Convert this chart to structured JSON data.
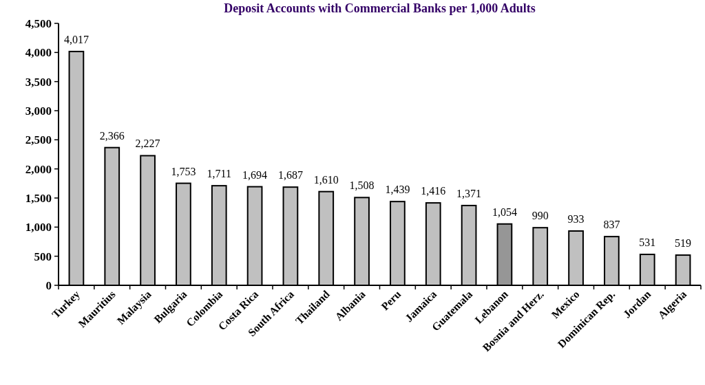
{
  "chart_data": {
    "type": "bar",
    "title": "Deposit Accounts with Commercial Banks per 1,000 Adults",
    "categories": [
      "Turkey",
      "Mauritius",
      "Malaysia",
      "Bulgaria",
      "Colombia",
      "Costa Rica",
      "South Africa",
      "Thailand",
      "Albania",
      "Peru",
      "Jamaica",
      "Guatemala",
      "Lebanon",
      "Bosnia and Herz.",
      "Mexico",
      "Dominican Rep.",
      "Jordan",
      "Algeria"
    ],
    "values": [
      4017,
      2366,
      2227,
      1753,
      1711,
      1694,
      1687,
      1610,
      1508,
      1439,
      1416,
      1371,
      1054,
      990,
      933,
      837,
      531,
      519
    ],
    "colors": [
      "#c0c0c0",
      "#c0c0c0",
      "#c0c0c0",
      "#c0c0c0",
      "#c0c0c0",
      "#c0c0c0",
      "#c0c0c0",
      "#c0c0c0",
      "#c0c0c0",
      "#c0c0c0",
      "#c0c0c0",
      "#c0c0c0",
      "#969696",
      "#c0c0c0",
      "#c0c0c0",
      "#c0c0c0",
      "#c0c0c0",
      "#c0c0c0"
    ],
    "ylim": [
      0,
      4500
    ],
    "yticks": [
      {
        "value": 0,
        "label": "0"
      },
      {
        "value": 500,
        "label": "500"
      },
      {
        "value": 1000,
        "label": "1,000"
      },
      {
        "value": 1500,
        "label": "1,500"
      },
      {
        "value": 2000,
        "label": "2,000"
      },
      {
        "value": 2500,
        "label": "2,500"
      },
      {
        "value": 3000,
        "label": "3,000"
      },
      {
        "value": 3500,
        "label": "3,500"
      },
      {
        "value": 4000,
        "label": "4,000"
      },
      {
        "value": 4500,
        "label": "4,500"
      }
    ],
    "value_labels": [
      "4,017",
      "2,366",
      "2,227",
      "1,753",
      "1,711",
      "1,694",
      "1,687",
      "1,610",
      "1,508",
      "1,439",
      "1,416",
      "1,371",
      "1,054",
      "990",
      "933",
      "837",
      "531",
      "519"
    ],
    "grid": false
  }
}
